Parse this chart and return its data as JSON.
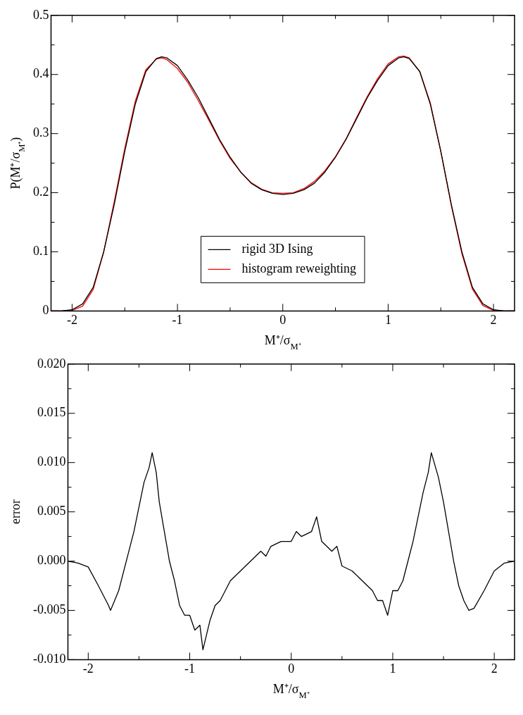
{
  "chart_data": [
    {
      "type": "line",
      "xlabel": "M⁺/σ$_{M⁺}$",
      "ylabel": "P(M⁺/σ$_{M⁺}$)",
      "legend": "bottom",
      "x": [
        -2.2,
        -2.1,
        -2.0,
        -1.9,
        -1.8,
        -1.7,
        -1.6,
        -1.5,
        -1.4,
        -1.3,
        -1.2,
        -1.15,
        -1.1,
        -1.0,
        -0.9,
        -0.8,
        -0.7,
        -0.6,
        -0.5,
        -0.4,
        -0.3,
        -0.2,
        -0.1,
        0,
        0.1,
        0.2,
        0.3,
        0.4,
        0.5,
        0.6,
        0.7,
        0.8,
        0.9,
        1.0,
        1.1,
        1.15,
        1.2,
        1.3,
        1.4,
        1.5,
        1.6,
        1.7,
        1.8,
        1.9,
        2.0,
        2.1,
        2.2
      ],
      "series": [
        {
          "name": "rigid 3D Ising",
          "color": "#000000",
          "values": [
            0,
            0,
            0.002,
            0.012,
            0.04,
            0.1,
            0.18,
            0.27,
            0.35,
            0.405,
            0.427,
            0.43,
            0.428,
            0.415,
            0.39,
            0.36,
            0.325,
            0.29,
            0.26,
            0.235,
            0.216,
            0.205,
            0.199,
            0.197,
            0.199,
            0.205,
            0.216,
            0.235,
            0.26,
            0.29,
            0.325,
            0.36,
            0.39,
            0.415,
            0.428,
            0.43,
            0.427,
            0.405,
            0.35,
            0.27,
            0.18,
            0.1,
            0.04,
            0.012,
            0.002,
            0,
            0
          ]
        },
        {
          "name": "histogram reweighting",
          "color": "#ff0000",
          "values": [
            0,
            0,
            0.001,
            0.008,
            0.036,
            0.1,
            0.185,
            0.275,
            0.355,
            0.408,
            0.426,
            0.428,
            0.425,
            0.41,
            0.386,
            0.355,
            0.322,
            0.288,
            0.258,
            0.235,
            0.217,
            0.206,
            0.2,
            0.199,
            0.2,
            0.207,
            0.219,
            0.237,
            0.261,
            0.291,
            0.327,
            0.362,
            0.393,
            0.418,
            0.43,
            0.431,
            0.428,
            0.405,
            0.352,
            0.27,
            0.178,
            0.097,
            0.037,
            0.009,
            0.001,
            0,
            0
          ]
        }
      ],
      "xlim": [
        -2.2,
        2.2
      ],
      "xticks": [
        -2,
        {
          "value": -1.5,
          "label": null
        },
        -1,
        {
          "value": -0.5,
          "label": null
        },
        0,
        {
          "value": 0.5,
          "label": null
        },
        1,
        {
          "value": 1.5,
          "label": null
        },
        2
      ],
      "ylim": [
        0,
        0.5
      ],
      "yticks": [
        0,
        {
          "value": 0.05,
          "label": null
        },
        0.1,
        {
          "value": 0.15,
          "label": null
        },
        0.2,
        {
          "value": 0.25,
          "label": null
        },
        0.3,
        {
          "value": 0.35,
          "label": null
        },
        0.4,
        {
          "value": 0.45,
          "label": null
        },
        0.5
      ]
    },
    {
      "type": "line",
      "xlabel": "M⁺/σ$_{M⁺}$",
      "ylabel": "error",
      "x": [
        -2.2,
        -2.1,
        -2.0,
        -1.9,
        -1.8,
        -1.78,
        -1.7,
        -1.6,
        -1.55,
        -1.5,
        -1.45,
        -1.4,
        -1.37,
        -1.33,
        -1.3,
        -1.25,
        -1.2,
        -1.15,
        -1.1,
        -1.05,
        -1.0,
        -0.95,
        -0.9,
        -0.87,
        -0.8,
        -0.75,
        -0.7,
        -0.6,
        -0.55,
        -0.5,
        -0.4,
        -0.3,
        -0.25,
        -0.2,
        -0.1,
        0,
        0.05,
        0.1,
        0.2,
        0.25,
        0.3,
        0.4,
        0.45,
        0.5,
        0.6,
        0.7,
        0.8,
        0.85,
        0.9,
        0.95,
        1.0,
        1.05,
        1.1,
        1.15,
        1.2,
        1.3,
        1.35,
        1.38,
        1.45,
        1.5,
        1.55,
        1.6,
        1.65,
        1.7,
        1.75,
        1.8,
        1.9,
        2.0,
        2.1,
        2.2
      ],
      "series": [
        {
          "color": "#000000",
          "values": [
            0,
            -0.0002,
            -0.0006,
            -0.0025,
            -0.0045,
            -0.005,
            -0.003,
            0.001,
            0.003,
            0.0055,
            0.008,
            0.0095,
            0.011,
            0.009,
            0.006,
            0.003,
            0.0,
            -0.002,
            -0.0045,
            -0.0055,
            -0.0055,
            -0.007,
            -0.0065,
            -0.009,
            -0.006,
            -0.0045,
            -0.004,
            -0.002,
            -0.0015,
            -0.001,
            0.0,
            0.001,
            0.0005,
            0.0015,
            0.002,
            0.002,
            0.003,
            0.0025,
            0.003,
            0.0045,
            0.002,
            0.001,
            0.0015,
            -0.0005,
            -0.001,
            -0.002,
            -0.003,
            -0.004,
            -0.004,
            -0.0055,
            -0.003,
            -0.003,
            -0.002,
            0.0,
            0.002,
            0.007,
            0.009,
            0.011,
            0.0085,
            0.006,
            0.003,
            0.0,
            -0.0025,
            -0.004,
            -0.005,
            -0.0048,
            -0.003,
            -0.001,
            -0.0002,
            0
          ]
        }
      ],
      "xlim": [
        -2.2,
        2.2
      ],
      "xticks": [
        -2,
        {
          "value": -1.5,
          "label": null
        },
        -1,
        {
          "value": -0.5,
          "label": null
        },
        0,
        {
          "value": 0.5,
          "label": null
        },
        1,
        {
          "value": 1.5,
          "label": null
        },
        2
      ],
      "ylim": [
        -0.01,
        0.02
      ],
      "yticks": [
        {
          "value": -0.01,
          "label": "-0.010"
        },
        {
          "value": -0.0075,
          "label": null
        },
        {
          "value": -0.005,
          "label": "-0.005"
        },
        {
          "value": -0.0025,
          "label": null
        },
        {
          "value": 0,
          "label": "0.000"
        },
        {
          "value": 0.0025,
          "label": null
        },
        {
          "value": 0.005,
          "label": "0.005"
        },
        {
          "value": 0.0075,
          "label": null
        },
        {
          "value": 0.01,
          "label": "0.010"
        },
        {
          "value": 0.0125,
          "label": null
        },
        {
          "value": 0.015,
          "label": "0.015"
        },
        {
          "value": 0.0175,
          "label": null
        },
        {
          "value": 0.02,
          "label": "0.020"
        }
      ]
    }
  ]
}
